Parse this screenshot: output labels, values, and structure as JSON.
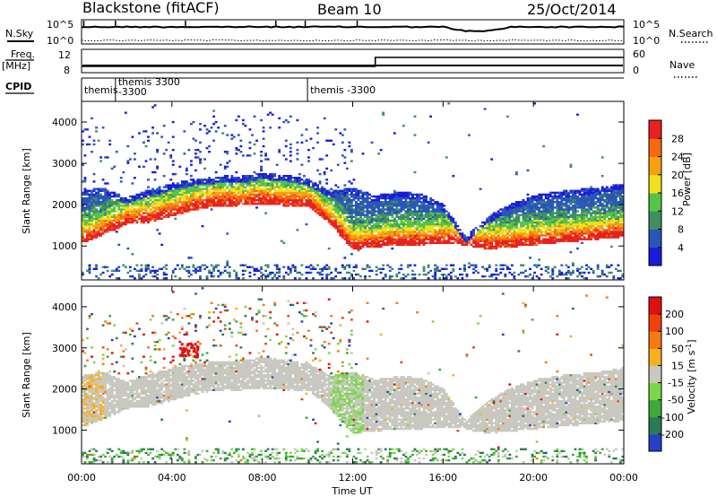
{
  "header": {
    "station": "Blackstone (fitACF)",
    "beam": "Beam 10",
    "date": "25/Oct/2014"
  },
  "noise_panel": {
    "left_label": "N.Sky",
    "right_label": "N.Search",
    "left_ticks": [
      "10^5",
      "10^0"
    ],
    "right_ticks": [
      "10^5",
      "10^0"
    ]
  },
  "freq_panel": {
    "left_label": "Freq.",
    "left_unit": "[MHz]",
    "right_label": "Nave",
    "left_ticks": [
      "12",
      "8"
    ],
    "right_ticks": [
      "60",
      "0"
    ],
    "nave_step_hour": 13.0
  },
  "cpid_panel": {
    "label": "CPID",
    "segments": [
      {
        "start_hour": 0.0,
        "lines": [
          "themis"
        ]
      },
      {
        "start_hour": 1.5,
        "lines": [
          "themis 3300",
          "-3300"
        ]
      },
      {
        "start_hour": 10.0,
        "lines": [
          "themis -3300"
        ]
      }
    ]
  },
  "chart_data": [
    {
      "type": "heatmap",
      "name": "power",
      "ylabel": "Slant Range [km]",
      "x_range_hours": [
        0,
        24
      ],
      "ylim": [
        180,
        4500
      ],
      "y_ticks": [
        "1000",
        "2000",
        "3000",
        "4000"
      ],
      "x_ticks": [
        "00:00",
        "04:00",
        "08:00",
        "12:00",
        "16:00",
        "20:00",
        "00:00"
      ],
      "colorbar": {
        "label": "Power [dB]",
        "ticks": [
          "4",
          "8",
          "12",
          "16",
          "20",
          "24",
          "28"
        ],
        "colors": [
          "#1a1adc",
          "#2a55b8",
          "#3f8f63",
          "#54c44a",
          "#f0e020",
          "#f7a010",
          "#f56a10",
          "#e82020"
        ]
      },
      "echo_band": [
        {
          "hour": 0,
          "lower": 1050,
          "upper": 2300
        },
        {
          "hour": 1,
          "lower": 1250,
          "upper": 2400
        },
        {
          "hour": 2,
          "lower": 1500,
          "upper": 2150
        },
        {
          "hour": 3,
          "lower": 1550,
          "upper": 2350
        },
        {
          "hour": 4,
          "lower": 1700,
          "upper": 2500
        },
        {
          "hour": 5,
          "lower": 1850,
          "upper": 2600
        },
        {
          "hour": 6,
          "lower": 1950,
          "upper": 2650
        },
        {
          "hour": 7,
          "lower": 1950,
          "upper": 2650
        },
        {
          "hour": 8,
          "lower": 2000,
          "upper": 2750
        },
        {
          "hour": 9,
          "lower": 1950,
          "upper": 2700
        },
        {
          "hour": 10,
          "lower": 1950,
          "upper": 2600
        },
        {
          "hour": 11,
          "lower": 1500,
          "upper": 2300
        },
        {
          "hour": 12,
          "lower": 900,
          "upper": 2400
        },
        {
          "hour": 13,
          "lower": 950,
          "upper": 2200
        },
        {
          "hour": 14,
          "lower": 1000,
          "upper": 2300
        },
        {
          "hour": 15,
          "lower": 1000,
          "upper": 2250
        },
        {
          "hour": 16,
          "lower": 1050,
          "upper": 2000
        },
        {
          "hour": 17,
          "lower": 1000,
          "upper": 1200
        },
        {
          "hour": 18,
          "lower": 900,
          "upper": 1700
        },
        {
          "hour": 19,
          "lower": 950,
          "upper": 2000
        },
        {
          "hour": 20,
          "lower": 1000,
          "upper": 2200
        },
        {
          "hour": 21,
          "lower": 1050,
          "upper": 2300
        },
        {
          "hour": 22,
          "lower": 1100,
          "upper": 2350
        },
        {
          "hour": 23,
          "lower": 1150,
          "upper": 2400
        },
        {
          "hour": 24,
          "lower": 1200,
          "upper": 2500
        }
      ]
    },
    {
      "type": "heatmap",
      "name": "velocity",
      "ylabel": "Slant Range [km]",
      "xlabel": "Time UT",
      "x_range_hours": [
        0,
        24
      ],
      "ylim": [
        180,
        4500
      ],
      "y_ticks": [
        "1000",
        "2000",
        "3000",
        "4000"
      ],
      "x_ticks": [
        "00:00",
        "04:00",
        "08:00",
        "12:00",
        "16:00",
        "20:00",
        "00:00"
      ],
      "colorbar": {
        "label": "Velocity [m s^-1]",
        "ticks": [
          "200",
          "100",
          "50",
          "15",
          "-15",
          "-50",
          "-100",
          "-200"
        ],
        "colors": [
          "#2a3fc8",
          "#2a7a55",
          "#3fa83a",
          "#7ad84a",
          "#c8c8c0",
          "#f7b020",
          "#f57a10",
          "#ef4010",
          "#e01010"
        ]
      }
    }
  ]
}
